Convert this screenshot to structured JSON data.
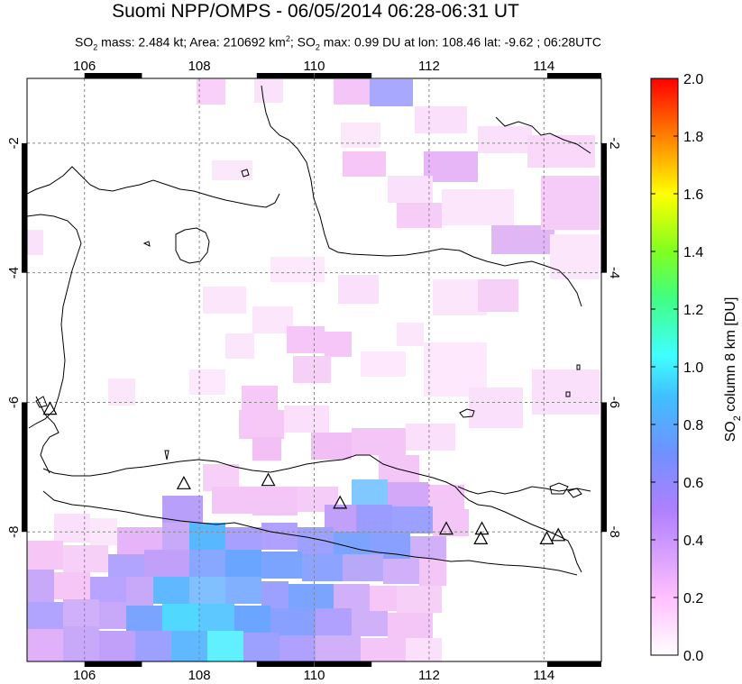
{
  "title": "Suomi NPP/OMPS - 06/05/2014 06:28-06:31 UT",
  "subtitle": {
    "so2": "SO",
    "so2_sub": "2",
    "mass": " mass: 2.484 kt; Area: 210692 km",
    "area_sup": "2",
    "so2b": "; SO",
    "so2b_sub": "2",
    "rest": " max: 0.99 DU at lon: 108.46 lat: -9.62 ; 06:28UTC"
  },
  "map": {
    "lon_range": [
      105,
      115
    ],
    "lat_range": [
      -10,
      -1
    ],
    "lon_ticks": [
      "106",
      "108",
      "110",
      "112",
      "114"
    ],
    "lat_ticks": [
      "-2",
      "-4",
      "-6",
      "-8"
    ],
    "volcano_markers": [
      [
        105.4,
        -6.1
      ],
      [
        107.73,
        -7.25
      ],
      [
        109.2,
        -7.2
      ],
      [
        110.45,
        -7.55
      ],
      [
        112.3,
        -7.95
      ],
      [
        112.92,
        -7.95
      ],
      [
        112.9,
        -8.1
      ],
      [
        114.05,
        -8.1
      ],
      [
        114.25,
        -8.05
      ]
    ]
  },
  "colorbar": {
    "label": "SO",
    "label_sub": "2",
    "label_rest": " column 8 km [DU]",
    "ticks": [
      "2.0",
      "1.8",
      "1.6",
      "1.4",
      "1.2",
      "1.0",
      "0.8",
      "0.6",
      "0.4",
      "0.2",
      "0.0"
    ],
    "colors": [
      "#ffffff",
      "#ffc0ff",
      "#b080ff",
      "#7090ff",
      "#40c0ff",
      "#40ffff",
      "#40ff80",
      "#80ff20",
      "#ffff00",
      "#ff8000",
      "#ff0000"
    ]
  }
}
